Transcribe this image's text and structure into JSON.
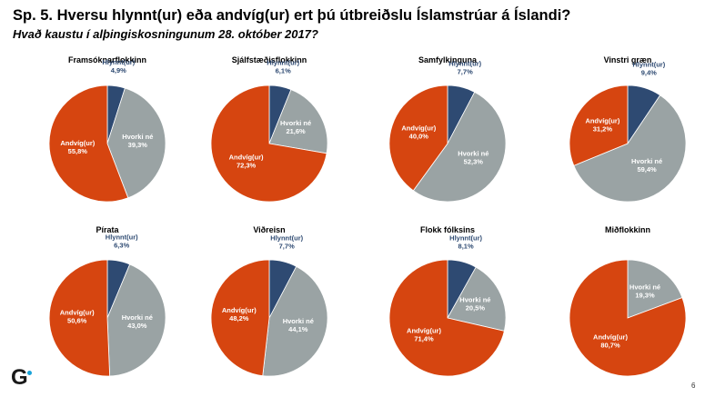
{
  "header": {
    "title": "Sp. 5. Hversu hlynnt(ur) eða andvíg(ur) ert þú útbreiðslu Íslamstrúar á Íslandi?",
    "subtitle": "Hvað kaustu í alþingiskosningunum 28. október 2017?"
  },
  "footer": {
    "logo_text": "G",
    "page_number": "6"
  },
  "colors": {
    "hlynnt": "#2e4a72",
    "hvorki": "#9aa3a4",
    "andvig": "#d64510",
    "logo_accent": "#1aa3d8"
  },
  "chart_data": [
    {
      "type": "pie",
      "title": "Framsóknarflokkinn",
      "categories": [
        "Hlynnt(ur)",
        "Hvorki né",
        "Andvíg(ur)"
      ],
      "values": [
        4.9,
        39.3,
        55.8
      ],
      "labels": [
        "4,9%",
        "39,3%",
        "55,8%"
      ]
    },
    {
      "type": "pie",
      "title": "Sjálfstæðisflokkinn",
      "categories": [
        "Hlynnt(ur)",
        "Hvorki né",
        "Andvíg(ur)"
      ],
      "values": [
        6.1,
        21.6,
        72.3
      ],
      "labels": [
        "6,1%",
        "21,6%",
        "72,3%"
      ]
    },
    {
      "type": "pie",
      "title": "Samfylkinguna",
      "categories": [
        "Hlynnt(ur)",
        "Hvorki né",
        "Andvíg(ur)"
      ],
      "values": [
        7.7,
        52.3,
        40.0
      ],
      "labels": [
        "7,7%",
        "52,3%",
        "40,0%"
      ]
    },
    {
      "type": "pie",
      "title": "Vinstri græn",
      "categories": [
        "Hlynnt(ur)",
        "Hvorki né",
        "Andvíg(ur)"
      ],
      "values": [
        9.4,
        59.4,
        31.2
      ],
      "labels": [
        "9,4%",
        "59,4%",
        "31,2%"
      ]
    },
    {
      "type": "pie",
      "title": "Pírata",
      "categories": [
        "Hlynnt(ur)",
        "Hvorki né",
        "Andvíg(ur)"
      ],
      "values": [
        6.3,
        43.0,
        50.6
      ],
      "labels": [
        "6,3%",
        "43,0%",
        "50,6%"
      ]
    },
    {
      "type": "pie",
      "title": "Viðreisn",
      "categories": [
        "Hlynnt(ur)",
        "Hvorki né",
        "Andvíg(ur)"
      ],
      "values": [
        7.7,
        44.1,
        48.2
      ],
      "labels": [
        "7,7%",
        "44,1%",
        "48,2%"
      ]
    },
    {
      "type": "pie",
      "title": "Flokk fólksins",
      "categories": [
        "Hlynnt(ur)",
        "Hvorki né",
        "Andvíg(ur)"
      ],
      "values": [
        8.1,
        20.5,
        71.4
      ],
      "labels": [
        "8,1%",
        "20,5%",
        "71,4%"
      ]
    },
    {
      "type": "pie",
      "title": "Miðflokkinn",
      "categories": [
        "Hvorki né",
        "Andvíg(ur)"
      ],
      "values": [
        19.3,
        80.7
      ],
      "labels": [
        "19,3%",
        "80,7%"
      ]
    }
  ]
}
